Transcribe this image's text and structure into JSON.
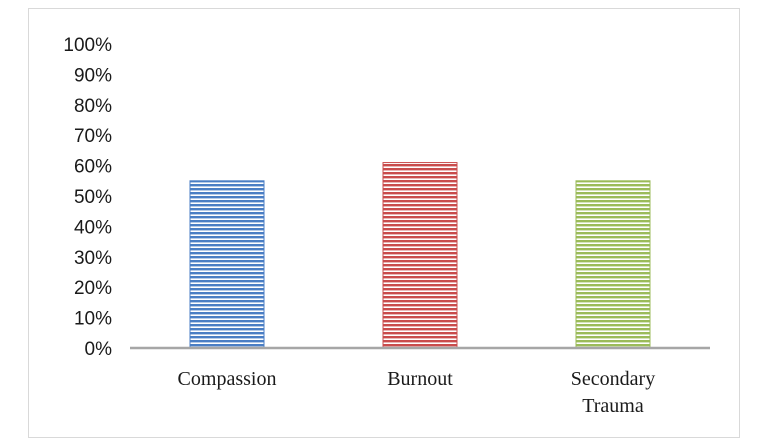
{
  "chart_data": {
    "type": "bar",
    "categories": [
      [
        "Compassion"
      ],
      [
        "Burnout"
      ],
      [
        "Secondary",
        "Trauma"
      ]
    ],
    "values": [
      55,
      61,
      55
    ],
    "ylim": [
      0,
      100
    ],
    "yticks": [
      "0%",
      "10%",
      "20%",
      "30%",
      "40%",
      "50%",
      "60%",
      "70%",
      "80%",
      "90%",
      "100%"
    ],
    "colors": [
      "#4a7ec4",
      "#c94c4c",
      "#9bbb59"
    ],
    "grid": false,
    "legend": "none"
  }
}
